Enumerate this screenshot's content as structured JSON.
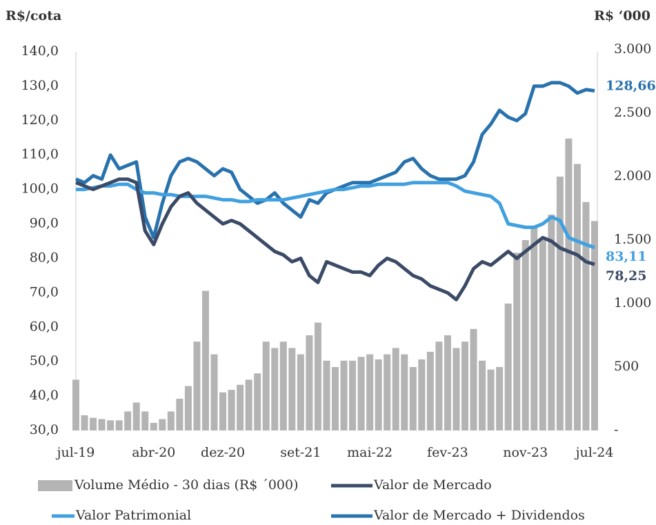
{
  "chart_data": {
    "type": "bar-line",
    "y_label": "R$/cota",
    "y2_label": "R$ ‘000",
    "categories": [
      "jul-19",
      null,
      null,
      null,
      null,
      null,
      null,
      null,
      null,
      "abr-20",
      null,
      null,
      null,
      null,
      null,
      null,
      null,
      "dez-20",
      null,
      null,
      null,
      null,
      null,
      null,
      null,
      null,
      "set-21",
      null,
      null,
      null,
      null,
      null,
      null,
      null,
      "mai-22",
      null,
      null,
      null,
      null,
      null,
      null,
      null,
      null,
      "fev-23",
      null,
      null,
      null,
      null,
      null,
      null,
      null,
      null,
      "nov-23",
      null,
      null,
      null,
      null,
      null,
      null,
      null,
      "jul-24"
    ],
    "ylim": [
      30,
      140
    ],
    "yticks": [
      {
        "value": 30,
        "label": "30,0"
      },
      {
        "value": 40,
        "label": "40,0"
      },
      {
        "value": 50,
        "label": "50,0"
      },
      {
        "value": 60,
        "label": "60,0"
      },
      {
        "value": 70,
        "label": "70,0"
      },
      {
        "value": 80,
        "label": "80,0"
      },
      {
        "value": 90,
        "label": "90,0"
      },
      {
        "value": 100,
        "label": "100,0"
      },
      {
        "value": 110,
        "label": "110,0"
      },
      {
        "value": 120,
        "label": "120,0"
      },
      {
        "value": 130,
        "label": "130,0"
      },
      {
        "value": 140,
        "label": "140,0"
      }
    ],
    "y2lim": [
      0,
      3000
    ],
    "y2ticks": [
      {
        "value": 0,
        "label": "-"
      },
      500,
      {
        "value": 1000,
        "label": "1.000"
      },
      {
        "value": 1500,
        "label": "1.500"
      },
      {
        "value": 2000,
        "label": "2.000"
      },
      {
        "value": 2500,
        "label": "2.500"
      },
      {
        "value": 3000,
        "label": "3.000"
      }
    ],
    "series": [
      {
        "name": "Volume Médio - 30 dias (R$ ´000)",
        "type": "bar",
        "axis": "y2",
        "color": "#b4b4b4",
        "values": [
          400,
          120,
          100,
          90,
          80,
          80,
          150,
          220,
          150,
          60,
          90,
          150,
          250,
          350,
          700,
          1100,
          600,
          300,
          320,
          360,
          400,
          450,
          700,
          650,
          700,
          650,
          600,
          750,
          850,
          550,
          500,
          550,
          550,
          580,
          600,
          560,
          600,
          650,
          600,
          500,
          560,
          620,
          700,
          750,
          650,
          700,
          800,
          550,
          480,
          500,
          1000,
          1400,
          1500,
          1600,
          1500,
          1700,
          2000,
          2300,
          2100,
          1800,
          1650
        ]
      },
      {
        "name": "Valor de Mercado",
        "type": "line",
        "color": "#3b4a66",
        "last_label": "78,25",
        "values": [
          102,
          101,
          100,
          101,
          102,
          103,
          103,
          102,
          88,
          84,
          90,
          95,
          98,
          99,
          96,
          94,
          92,
          90,
          91,
          90,
          88,
          86,
          84,
          82,
          81,
          79,
          80,
          75,
          73,
          79,
          78,
          77,
          76,
          76,
          75,
          78,
          80,
          79,
          77,
          75,
          74,
          72,
          71,
          70,
          68,
          72,
          77,
          79,
          78,
          80,
          82,
          80,
          82,
          84,
          86,
          85,
          83,
          82,
          81,
          79,
          78.25
        ]
      },
      {
        "name": "Valor Patrimonial",
        "type": "line",
        "color": "#41a0e0",
        "last_label": "83,11",
        "values": [
          100,
          100,
          100.5,
          101,
          101,
          101.5,
          101.5,
          100,
          99,
          99,
          98.5,
          98.5,
          98,
          98,
          98,
          98,
          97.5,
          97,
          97,
          96.5,
          96.5,
          97,
          97,
          97,
          97,
          97.5,
          98,
          98.5,
          99,
          99.5,
          100,
          100,
          100.5,
          101,
          101,
          101.5,
          101.5,
          101.5,
          101.5,
          102,
          102,
          102,
          102,
          102,
          101,
          99.5,
          99,
          98.5,
          98,
          96,
          90,
          89.5,
          89,
          89,
          90,
          92,
          91,
          86,
          85,
          84,
          83.11
        ]
      },
      {
        "name": "Valor de Mercado + Dividendos",
        "type": "line",
        "color": "#2872ad",
        "last_label": "128,66",
        "values": [
          103,
          102,
          104,
          103,
          110,
          106,
          107,
          108,
          92,
          86,
          96,
          104,
          108,
          109,
          108,
          106,
          104,
          106,
          105,
          100,
          98,
          96,
          97,
          99,
          96,
          94,
          92,
          97,
          96,
          99,
          100,
          101,
          102,
          102,
          102,
          103,
          104,
          105,
          108,
          109,
          106,
          104,
          103,
          103,
          103,
          104,
          108,
          116,
          119,
          123,
          121,
          120,
          122,
          130,
          130,
          131,
          131,
          130,
          128,
          129,
          128.66
        ]
      }
    ]
  }
}
